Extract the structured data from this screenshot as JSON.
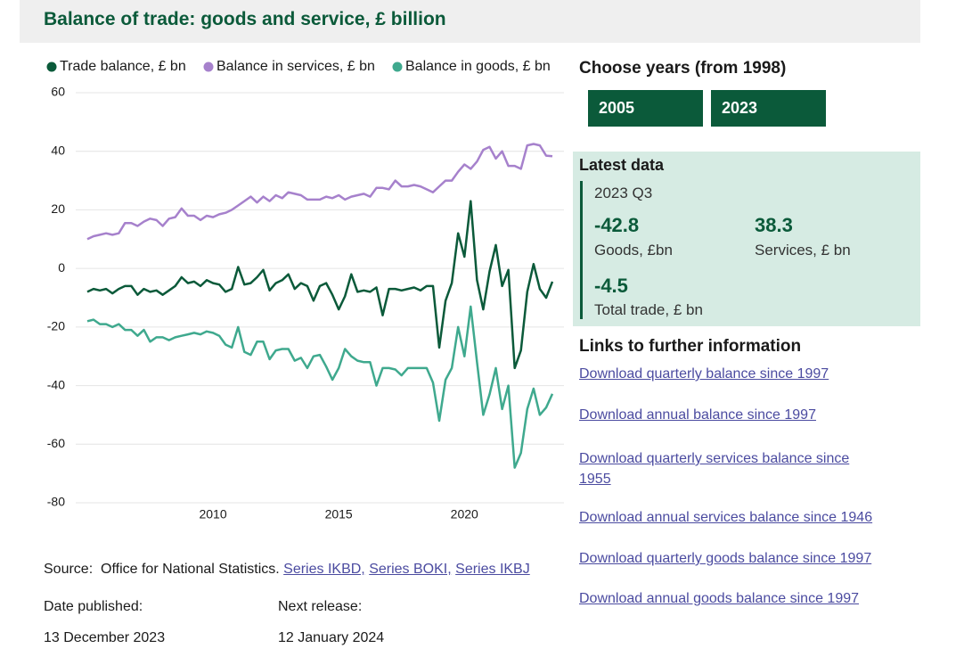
{
  "header": {
    "title": "Balance of trade: goods and service, £ billion"
  },
  "chart_data": {
    "type": "line",
    "x": [
      2005,
      2005.25,
      2005.5,
      2005.75,
      2006,
      2006.25,
      2006.5,
      2006.75,
      2007,
      2007.25,
      2007.5,
      2007.75,
      2008,
      2008.25,
      2008.5,
      2008.75,
      2009,
      2009.25,
      2009.5,
      2009.75,
      2010,
      2010.25,
      2010.5,
      2010.75,
      2011,
      2011.25,
      2011.5,
      2011.75,
      2012,
      2012.25,
      2012.5,
      2012.75,
      2013,
      2013.25,
      2013.5,
      2013.75,
      2014,
      2014.25,
      2014.5,
      2014.75,
      2015,
      2015.25,
      2015.5,
      2015.75,
      2016,
      2016.25,
      2016.5,
      2016.75,
      2017,
      2017.25,
      2017.5,
      2017.75,
      2018,
      2018.25,
      2018.5,
      2018.75,
      2019,
      2019.25,
      2019.5,
      2019.75,
      2020,
      2020.25,
      2020.5,
      2020.75,
      2021,
      2021.25,
      2021.5,
      2021.75,
      2022,
      2022.25,
      2022.5,
      2022.75,
      2023,
      2023.25,
      2023.5
    ],
    "series": [
      {
        "name": "Trade balance, £ bn",
        "color": "#0b5a3a",
        "values": [
          -8,
          -7,
          -7.5,
          -7,
          -8.5,
          -7,
          -6,
          -6,
          -9,
          -7,
          -8,
          -7.5,
          -9,
          -7.5,
          -6,
          -3,
          -5,
          -4.5,
          -6,
          -4,
          -5,
          -5.5,
          -8,
          -7,
          0.5,
          -5.5,
          -5,
          -3,
          -0.5,
          -7.5,
          -5,
          -4,
          -2,
          -7,
          -5,
          -6,
          -11,
          -6,
          -5,
          -9,
          -14,
          -9.5,
          -2,
          -8,
          -7.5,
          -8,
          -6.5,
          -16,
          -7,
          -7,
          -7.5,
          -7,
          -6.5,
          -7.5,
          -6,
          -6,
          -27,
          -11,
          -5,
          12,
          4,
          23,
          -4,
          -14,
          -1,
          8,
          -6,
          -0.5,
          -34,
          -28,
          -8,
          1.5,
          -7,
          -10,
          -4.5
        ]
      },
      {
        "name": "Balance in services, £ bn",
        "color": "#a681cc",
        "values": [
          10,
          11,
          11.5,
          12,
          11.5,
          12,
          15.5,
          15.5,
          14.5,
          16,
          17,
          16.5,
          14.5,
          17,
          17.5,
          20.5,
          18,
          18,
          16.5,
          18,
          17.5,
          18.5,
          19,
          20,
          21.5,
          23,
          24.5,
          22.5,
          24.5,
          23,
          25,
          24,
          26,
          25.5,
          25,
          23.5,
          23.5,
          23.5,
          24.5,
          24,
          25,
          23.5,
          24.5,
          25,
          25.5,
          24.5,
          27.5,
          27.5,
          27,
          30,
          28,
          28,
          28.5,
          28,
          27,
          26,
          28,
          30,
          30,
          33,
          35.5,
          34,
          36.5,
          40.5,
          41.5,
          37.5,
          40,
          35,
          35,
          34,
          42,
          42.5,
          42,
          38.5,
          38.3
        ]
      },
      {
        "name": "Balance in goods, £ bn",
        "color": "#3fa98e",
        "values": [
          -18,
          -17.5,
          -19,
          -19,
          -20,
          -19,
          -21,
          -21,
          -23,
          -21,
          -25,
          -23.5,
          -23.5,
          -24.5,
          -23.5,
          -23,
          -22.5,
          -22,
          -22.5,
          -21.5,
          -22,
          -23,
          -26,
          -27,
          -20,
          -28.5,
          -29.5,
          -25,
          -25,
          -31,
          -28,
          -27.5,
          -27.5,
          -31.5,
          -30.5,
          -34,
          -30,
          -29.5,
          -33.5,
          -38,
          -34,
          -27.5,
          -30,
          -31.5,
          -32,
          -32,
          -40,
          -34,
          -34,
          -34.5,
          -36.5,
          -34,
          -34,
          -34,
          -34,
          -39,
          -52,
          -38,
          -34,
          -20,
          -30,
          -13,
          -32,
          -50,
          -43,
          -34,
          -48,
          -40,
          -68,
          -63,
          -48,
          -41,
          -50,
          -47.5,
          -42.8
        ]
      }
    ],
    "xlim": [
      2004.54,
      2023.96
    ],
    "xticks": [
      2010,
      2015,
      2020
    ],
    "ylim": [
      -80,
      60
    ],
    "yticks": [
      -80,
      -60,
      -40,
      -20,
      0,
      20,
      40,
      60
    ],
    "grid": true,
    "legend": "top"
  },
  "controls": {
    "title": "Choose years (from 1998)",
    "buttons": [
      "2005",
      "2023"
    ]
  },
  "latest": {
    "title": "Latest data",
    "period": "2023 Q3",
    "items": [
      {
        "value": -42.8,
        "label": "Goods, £bn"
      },
      {
        "value": 38.3,
        "label": "Services, £ bn"
      },
      {
        "value": -4.5,
        "label": "Total trade, £ bn"
      }
    ]
  },
  "links": {
    "title": "Links to further information",
    "items": [
      "Download quarterly balance since 1997",
      "Download annual balance since 1997",
      "Download quarterly services balance since 1955",
      "Download annual services balance since 1946",
      "Download quarterly goods balance since 1997",
      "Download annual goods balance since 1997"
    ]
  },
  "source": {
    "label": "Source:",
    "text": "Office for National Statistics.",
    "links": [
      "Series IKBD,",
      "Series BOKI,",
      "Series IKBJ"
    ]
  },
  "dates": {
    "published_label": "Date published:",
    "published": "13 December 2023",
    "next_label": "Next release:",
    "next": "12 January 2024"
  }
}
